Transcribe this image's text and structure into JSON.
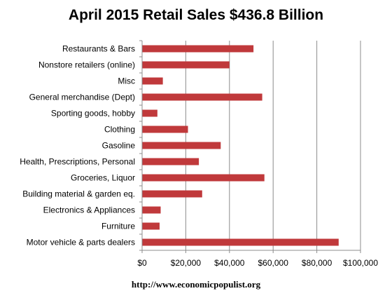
{
  "chart_data": {
    "type": "bar",
    "orientation": "horizontal",
    "title": "April 2015 Retail Sales $436.8 Billion",
    "xlabel": "",
    "ylabel": "",
    "categories": [
      "Restaurants & Bars",
      "Nonstore retailers (online)",
      "Misc",
      "General merchandise (Dept)",
      "Sporting goods, hobby",
      "Clothing",
      "Gasoline",
      "Health, Prescriptions, Personal",
      "Groceries, Liquor",
      "Building material & garden eq.",
      "Electronics & Appliances",
      "Furniture",
      "Motor vehicle & parts dealers"
    ],
    "values": [
      51000,
      40000,
      9500,
      55000,
      7000,
      21000,
      36000,
      26000,
      56000,
      27500,
      8500,
      8000,
      90000
    ],
    "xlim": [
      0,
      100000
    ],
    "xticks": [
      0,
      20000,
      40000,
      60000,
      80000,
      100000
    ],
    "xtick_labels": [
      "$0",
      "$20,000",
      "$40,000",
      "$60,000",
      "$80,000",
      "$100,000"
    ],
    "grid": true,
    "legend": "none",
    "bar_color": "#c0393b",
    "grid_color": "#8c8c8c"
  },
  "footer": {
    "source_url": "http://www.economicpopulist.org"
  }
}
